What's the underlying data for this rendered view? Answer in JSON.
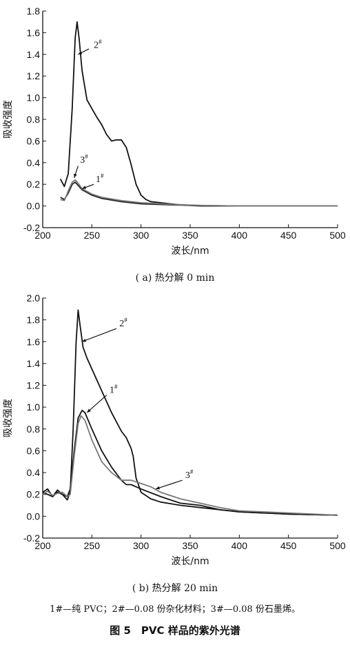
{
  "chart_data": [
    {
      "type": "line",
      "subtitle": "( a) 热分解 0 min",
      "xlabel": "波长/nm",
      "ylabel": "吸收强度",
      "xlim": [
        200,
        500
      ],
      "ylim": [
        -0.2,
        1.8
      ],
      "xticks": [
        "200",
        "250",
        "300",
        "350",
        "400",
        "450",
        "500"
      ],
      "yticks": [
        "-0.2",
        "0.0",
        "0.2",
        "0.4",
        "0.6",
        "0.8",
        "1.0",
        "1.2",
        "1.4",
        "1.6",
        "1.8"
      ],
      "series": [
        {
          "name": "1#",
          "color": "#222222",
          "x": [
            218,
            222,
            226,
            230,
            233,
            236,
            240,
            250,
            260,
            280,
            300,
            330,
            360,
            400,
            450,
            500
          ],
          "y": [
            0.08,
            0.06,
            0.12,
            0.2,
            0.22,
            0.19,
            0.15,
            0.1,
            0.07,
            0.04,
            0.02,
            0.01,
            0.005,
            0.0,
            0.0,
            0.0
          ]
        },
        {
          "name": "2#",
          "color": "#111111",
          "x": [
            218,
            222,
            226,
            230,
            233,
            235,
            237,
            240,
            245,
            250,
            255,
            260,
            265,
            270,
            275,
            280,
            285,
            290,
            295,
            300,
            305,
            310,
            320,
            330,
            340,
            360,
            400,
            450,
            500
          ],
          "y": [
            0.25,
            0.18,
            0.3,
            0.9,
            1.55,
            1.7,
            1.55,
            1.25,
            0.98,
            0.9,
            0.82,
            0.75,
            0.66,
            0.6,
            0.61,
            0.61,
            0.54,
            0.38,
            0.2,
            0.1,
            0.06,
            0.04,
            0.03,
            0.02,
            0.01,
            0.0,
            0.0,
            0.0,
            0.0
          ]
        },
        {
          "name": "3#",
          "color": "#777777",
          "x": [
            218,
            222,
            226,
            230,
            233,
            236,
            240,
            250,
            260,
            280,
            300,
            330,
            360,
            400,
            450,
            500
          ],
          "y": [
            0.06,
            0.05,
            0.14,
            0.22,
            0.24,
            0.21,
            0.16,
            0.11,
            0.08,
            0.05,
            0.03,
            0.015,
            0.005,
            0.0,
            0.0,
            0.0
          ]
        }
      ],
      "annotations": [
        {
          "text": "2",
          "sup": "#",
          "x": 252,
          "y": 1.46
        },
        {
          "text": "3",
          "sup": "#",
          "x": 238,
          "y": 0.4
        },
        {
          "text": "1",
          "sup": "#",
          "x": 254,
          "y": 0.22
        }
      ]
    },
    {
      "type": "line",
      "subtitle": "( b) 热分解 20 min",
      "xlabel": "波长/nm",
      "ylabel": "吸收强度",
      "xlim": [
        200,
        500
      ],
      "ylim": [
        -0.2,
        2.0
      ],
      "xticks": [
        "200",
        "250",
        "300",
        "350",
        "400",
        "450",
        "500"
      ],
      "yticks": [
        "-0.2",
        "0.0",
        "0.2",
        "0.4",
        "0.6",
        "0.8",
        "1.0",
        "1.2",
        "1.4",
        "1.6",
        "1.8",
        "2.0"
      ],
      "series": [
        {
          "name": "1#",
          "color": "#111111",
          "x": [
            200,
            205,
            210,
            215,
            220,
            225,
            228,
            232,
            236,
            240,
            243,
            250,
            260,
            270,
            280,
            285,
            290,
            295,
            300,
            320,
            340,
            360,
            380,
            400,
            450,
            500
          ],
          "y": [
            0.22,
            0.2,
            0.18,
            0.22,
            0.2,
            0.18,
            0.25,
            0.6,
            0.9,
            0.97,
            0.95,
            0.8,
            0.6,
            0.45,
            0.33,
            0.29,
            0.29,
            0.27,
            0.25,
            0.18,
            0.12,
            0.1,
            0.06,
            0.04,
            0.02,
            0.01
          ]
        },
        {
          "name": "2#",
          "color": "#111111",
          "x": [
            200,
            205,
            210,
            215,
            220,
            225,
            228,
            231,
            234,
            236,
            238,
            241,
            245,
            250,
            260,
            270,
            280,
            285,
            290,
            292,
            295,
            300,
            310,
            320,
            340,
            360,
            380,
            400,
            450,
            500
          ],
          "y": [
            0.22,
            0.25,
            0.18,
            0.24,
            0.2,
            0.15,
            0.22,
            0.8,
            1.6,
            1.89,
            1.75,
            1.55,
            1.45,
            1.35,
            1.15,
            0.95,
            0.78,
            0.72,
            0.62,
            0.55,
            0.35,
            0.22,
            0.16,
            0.13,
            0.1,
            0.08,
            0.06,
            0.04,
            0.02,
            0.01
          ]
        },
        {
          "name": "3#",
          "color": "#777777",
          "x": [
            200,
            205,
            210,
            215,
            220,
            225,
            228,
            232,
            236,
            239,
            243,
            250,
            260,
            270,
            280,
            290,
            300,
            310,
            320,
            340,
            360,
            380,
            400,
            450,
            500
          ],
          "y": [
            0.2,
            0.23,
            0.19,
            0.21,
            0.22,
            0.18,
            0.2,
            0.55,
            0.85,
            0.92,
            0.88,
            0.7,
            0.5,
            0.4,
            0.33,
            0.33,
            0.3,
            0.27,
            0.22,
            0.16,
            0.12,
            0.08,
            0.05,
            0.03,
            0.01
          ]
        }
      ],
      "annotations": [
        {
          "text": "2",
          "sup": "#",
          "x": 278,
          "y": 1.74
        },
        {
          "text": "1",
          "sup": "#",
          "x": 268,
          "y": 1.13
        },
        {
          "text": "3",
          "sup": "#",
          "x": 345,
          "y": 0.35
        }
      ]
    }
  ],
  "legend_note": "1#—纯 PVC；2#—0.08 份杂化材料；3#—0.08 份石墨烯。",
  "figure_title": "图 5　PVC 样品的紫外光谱"
}
